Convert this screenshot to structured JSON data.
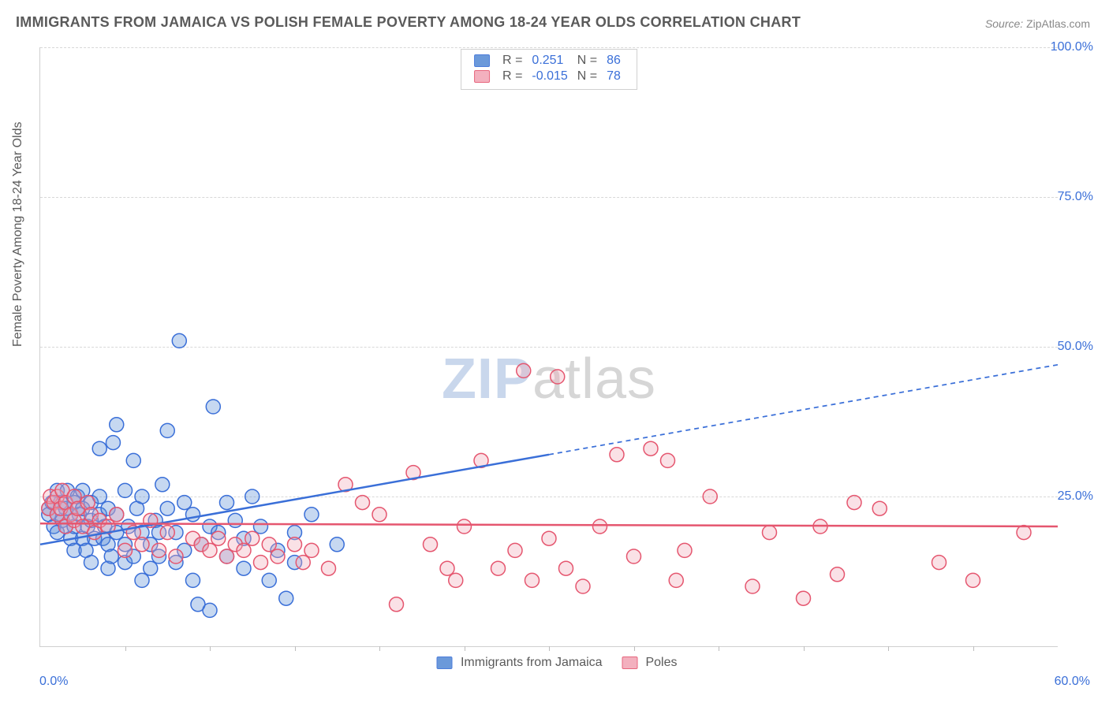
{
  "title": "IMMIGRANTS FROM JAMAICA VS POLISH FEMALE POVERTY AMONG 18-24 YEAR OLDS CORRELATION CHART",
  "source": {
    "label": "Source:",
    "value": "ZipAtlas.com"
  },
  "watermark": {
    "zip": "ZIP",
    "atlas": "atlas"
  },
  "y_axis_label": "Female Poverty Among 18-24 Year Olds",
  "chart": {
    "type": "scatter",
    "xlim": [
      0,
      60
    ],
    "ylim": [
      0,
      100
    ],
    "y_ticks": [
      25,
      50,
      75,
      100
    ],
    "y_tick_labels": [
      "25.0%",
      "50.0%",
      "75.0%",
      "100.0%"
    ],
    "x_min_label": "0.0%",
    "x_max_label": "60.0%",
    "x_minor_ticks": [
      5,
      10,
      15,
      20,
      25,
      30,
      35,
      40,
      45,
      50,
      55
    ],
    "grid_color": "#d8d8d8",
    "axis_color": "#cfcfcf",
    "background_color": "#ffffff",
    "tick_label_color": "#3a6fd8",
    "tick_label_fontsize": 16,
    "marker_radius": 9,
    "marker_stroke_width": 1.5,
    "marker_fill_opacity": 0.35,
    "line_width": 2.5,
    "dash_pattern": "6,5"
  },
  "series": [
    {
      "name": "Immigrants from Jamaica",
      "color": "#5b8fd6",
      "stroke": "#3a6fd8",
      "R": "0.251",
      "N": "86",
      "trend": {
        "x1": 0,
        "y1": 17,
        "x2": 30,
        "y2": 32,
        "extend_x2": 60,
        "extend_y2": 47
      },
      "points": [
        [
          0.5,
          23
        ],
        [
          0.5,
          22
        ],
        [
          0.7,
          24
        ],
        [
          0.8,
          20
        ],
        [
          1.0,
          26
        ],
        [
          1.0,
          22
        ],
        [
          1.0,
          19
        ],
        [
          1.2,
          24
        ],
        [
          1.3,
          21
        ],
        [
          1.5,
          23
        ],
        [
          1.5,
          20
        ],
        [
          1.6,
          26
        ],
        [
          1.8,
          22
        ],
        [
          1.8,
          18
        ],
        [
          2.0,
          24
        ],
        [
          2.0,
          20
        ],
        [
          2.0,
          16
        ],
        [
          2.2,
          25
        ],
        [
          2.3,
          22
        ],
        [
          2.5,
          18
        ],
        [
          2.5,
          23
        ],
        [
          2.5,
          26
        ],
        [
          2.7,
          16
        ],
        [
          2.8,
          20
        ],
        [
          3.0,
          24
        ],
        [
          3.0,
          21
        ],
        [
          3.0,
          14
        ],
        [
          3.2,
          18
        ],
        [
          3.5,
          22
        ],
        [
          3.5,
          25
        ],
        [
          3.5,
          33
        ],
        [
          3.7,
          18
        ],
        [
          3.8,
          20
        ],
        [
          4.0,
          17
        ],
        [
          4.0,
          23
        ],
        [
          4.0,
          13
        ],
        [
          4.2,
          15
        ],
        [
          4.3,
          34
        ],
        [
          4.5,
          37
        ],
        [
          4.5,
          19
        ],
        [
          4.5,
          22
        ],
        [
          5.0,
          26
        ],
        [
          5.0,
          14
        ],
        [
          5.0,
          17
        ],
        [
          5.2,
          20
        ],
        [
          5.5,
          31
        ],
        [
          5.5,
          15
        ],
        [
          5.7,
          23
        ],
        [
          6.0,
          11
        ],
        [
          6.0,
          19
        ],
        [
          6.0,
          25
        ],
        [
          6.5,
          13
        ],
        [
          6.5,
          17
        ],
        [
          6.8,
          21
        ],
        [
          7.0,
          15
        ],
        [
          7.0,
          19
        ],
        [
          7.2,
          27
        ],
        [
          7.5,
          23
        ],
        [
          7.5,
          36
        ],
        [
          8.0,
          14
        ],
        [
          8.0,
          19
        ],
        [
          8.2,
          51
        ],
        [
          8.5,
          24
        ],
        [
          8.5,
          16
        ],
        [
          9.0,
          11
        ],
        [
          9.0,
          22
        ],
        [
          9.3,
          7
        ],
        [
          9.5,
          17
        ],
        [
          10.0,
          6
        ],
        [
          10.0,
          20
        ],
        [
          10.2,
          40
        ],
        [
          10.5,
          19
        ],
        [
          11.0,
          15
        ],
        [
          11.0,
          24
        ],
        [
          11.5,
          21
        ],
        [
          12.0,
          13
        ],
        [
          12.0,
          18
        ],
        [
          12.5,
          25
        ],
        [
          13.0,
          20
        ],
        [
          13.5,
          11
        ],
        [
          14.0,
          16
        ],
        [
          14.5,
          8
        ],
        [
          15.0,
          19
        ],
        [
          15.0,
          14
        ],
        [
          16.0,
          22
        ],
        [
          17.5,
          17
        ]
      ]
    },
    {
      "name": "Poles",
      "color": "#f2a8b8",
      "stroke": "#e5566f",
      "R": "-0.015",
      "N": "78",
      "trend": {
        "x1": 0,
        "y1": 20.5,
        "x2": 60,
        "y2": 20.0,
        "extend_x2": 60,
        "extend_y2": 20.0
      },
      "points": [
        [
          0.5,
          23
        ],
        [
          0.6,
          25
        ],
        [
          0.8,
          24
        ],
        [
          1.0,
          25
        ],
        [
          1.0,
          22
        ],
        [
          1.2,
          23
        ],
        [
          1.3,
          26
        ],
        [
          1.5,
          20
        ],
        [
          1.5,
          24
        ],
        [
          1.8,
          22
        ],
        [
          2.0,
          21
        ],
        [
          2.0,
          25
        ],
        [
          2.2,
          23
        ],
        [
          2.5,
          20
        ],
        [
          2.8,
          24
        ],
        [
          3.0,
          22
        ],
        [
          3.2,
          19
        ],
        [
          3.5,
          21
        ],
        [
          4.0,
          20
        ],
        [
          4.5,
          22
        ],
        [
          5.0,
          16
        ],
        [
          5.5,
          19
        ],
        [
          6.0,
          17
        ],
        [
          6.5,
          21
        ],
        [
          7.0,
          16
        ],
        [
          7.5,
          19
        ],
        [
          8.0,
          15
        ],
        [
          9.0,
          18
        ],
        [
          9.5,
          17
        ],
        [
          10.0,
          16
        ],
        [
          10.5,
          18
        ],
        [
          11.0,
          15
        ],
        [
          11.5,
          17
        ],
        [
          12.0,
          16
        ],
        [
          12.5,
          18
        ],
        [
          13.0,
          14
        ],
        [
          13.5,
          17
        ],
        [
          14.0,
          15
        ],
        [
          15.0,
          17
        ],
        [
          15.5,
          14
        ],
        [
          16.0,
          16
        ],
        [
          17.0,
          13
        ],
        [
          18.0,
          27
        ],
        [
          19.0,
          24
        ],
        [
          20.0,
          22
        ],
        [
          21.0,
          7
        ],
        [
          22.0,
          29
        ],
        [
          23.0,
          17
        ],
        [
          24.0,
          13
        ],
        [
          24.5,
          11
        ],
        [
          25.0,
          20
        ],
        [
          26.0,
          31
        ],
        [
          27.0,
          13
        ],
        [
          28.0,
          16
        ],
        [
          28.5,
          46
        ],
        [
          29.0,
          11
        ],
        [
          30.0,
          18
        ],
        [
          30.5,
          45
        ],
        [
          31.0,
          13
        ],
        [
          32.0,
          10
        ],
        [
          33.0,
          20
        ],
        [
          34.0,
          32
        ],
        [
          35.0,
          15
        ],
        [
          36.0,
          33
        ],
        [
          37.0,
          31
        ],
        [
          37.5,
          11
        ],
        [
          38.0,
          16
        ],
        [
          39.5,
          25
        ],
        [
          42.0,
          10
        ],
        [
          43.0,
          19
        ],
        [
          45.0,
          8
        ],
        [
          46.0,
          20
        ],
        [
          47.0,
          12
        ],
        [
          48.0,
          24
        ],
        [
          49.5,
          23
        ],
        [
          53.0,
          14
        ],
        [
          55.0,
          11
        ],
        [
          58.0,
          19
        ]
      ]
    }
  ],
  "legend_top": {
    "r_label": "R",
    "n_label": "N",
    "eq": "="
  },
  "legend_bottom": {
    "items": [
      "Immigrants from Jamaica",
      "Poles"
    ]
  }
}
